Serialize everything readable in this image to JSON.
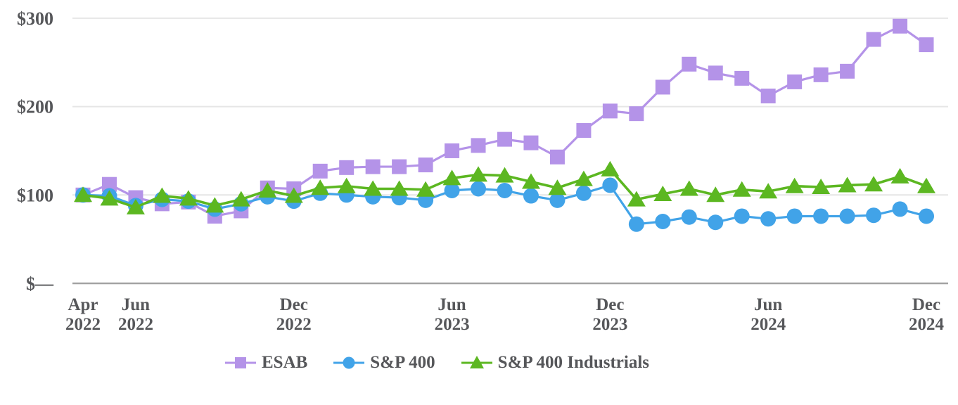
{
  "chart_data": {
    "type": "line",
    "title": "",
    "xlabel": "",
    "ylabel": "",
    "ylim": [
      0,
      300
    ],
    "grid": true,
    "legend_position": "bottom",
    "y_axis": {
      "labels": [
        "$300",
        "$200",
        "$100",
        "$—"
      ],
      "values": [
        300,
        200,
        100,
        0
      ]
    },
    "x_ticks": [
      {
        "index": 0,
        "line1": "Apr",
        "line2": "2022"
      },
      {
        "index": 2,
        "line1": "Jun",
        "line2": "2022"
      },
      {
        "index": 8,
        "line1": "Dec",
        "line2": "2022"
      },
      {
        "index": 14,
        "line1": "Jun",
        "line2": "2023"
      },
      {
        "index": 20,
        "line1": "Dec",
        "line2": "2023"
      },
      {
        "index": 26,
        "line1": "Jun",
        "line2": "2024"
      },
      {
        "index": 32,
        "line1": "Dec",
        "line2": "2024"
      }
    ],
    "categories": [
      "Apr 2022",
      "May 2022",
      "Jun 2022",
      "Jul 2022",
      "Aug 2022",
      "Sep 2022",
      "Oct 2022",
      "Nov 2022",
      "Dec 2022",
      "Jan 2023",
      "Feb 2023",
      "Mar 2023",
      "Apr 2023",
      "May 2023",
      "Jun 2023",
      "Jul 2023",
      "Aug 2023",
      "Sep 2023",
      "Oct 2023",
      "Nov 2023",
      "Dec 2023",
      "Jan 2024",
      "Feb 2024",
      "Mar 2024",
      "Apr 2024",
      "May 2024",
      "Jun 2024",
      "Jul 2024",
      "Aug 2024",
      "Sep 2024",
      "Oct 2024",
      "Nov 2024",
      "Dec 2024"
    ],
    "series": [
      {
        "name": "ESAB",
        "marker": "square",
        "color": "#b493e8",
        "values": [
          100,
          112,
          97,
          90,
          92,
          76,
          82,
          108,
          107,
          127,
          131,
          132,
          132,
          134,
          150,
          156,
          163,
          159,
          143,
          173,
          195,
          192,
          222,
          248,
          238,
          232,
          212,
          228,
          236,
          240,
          276,
          291,
          270
        ]
      },
      {
        "name": "S&P 400",
        "marker": "circle",
        "color": "#41a3e8",
        "values": [
          100,
          99,
          88,
          95,
          93,
          84,
          90,
          98,
          93,
          102,
          100,
          98,
          97,
          94,
          105,
          107,
          105,
          99,
          94,
          102,
          111,
          67,
          70,
          75,
          69,
          76,
          73,
          76,
          76,
          76,
          77,
          84,
          76
        ]
      },
      {
        "name": "S&P 400 Industrials",
        "marker": "triangle",
        "color": "#5cb721",
        "values": [
          100,
          96,
          86,
          99,
          96,
          88,
          95,
          105,
          99,
          108,
          110,
          107,
          107,
          106,
          119,
          123,
          122,
          115,
          108,
          118,
          129,
          95,
          101,
          107,
          100,
          106,
          104,
          110,
          109,
          111,
          112,
          121,
          110
        ]
      }
    ],
    "style_colors": {
      "gridline": "#e6e6e6",
      "axis_line": "#a3a3a3",
      "text": "#56575a"
    }
  }
}
